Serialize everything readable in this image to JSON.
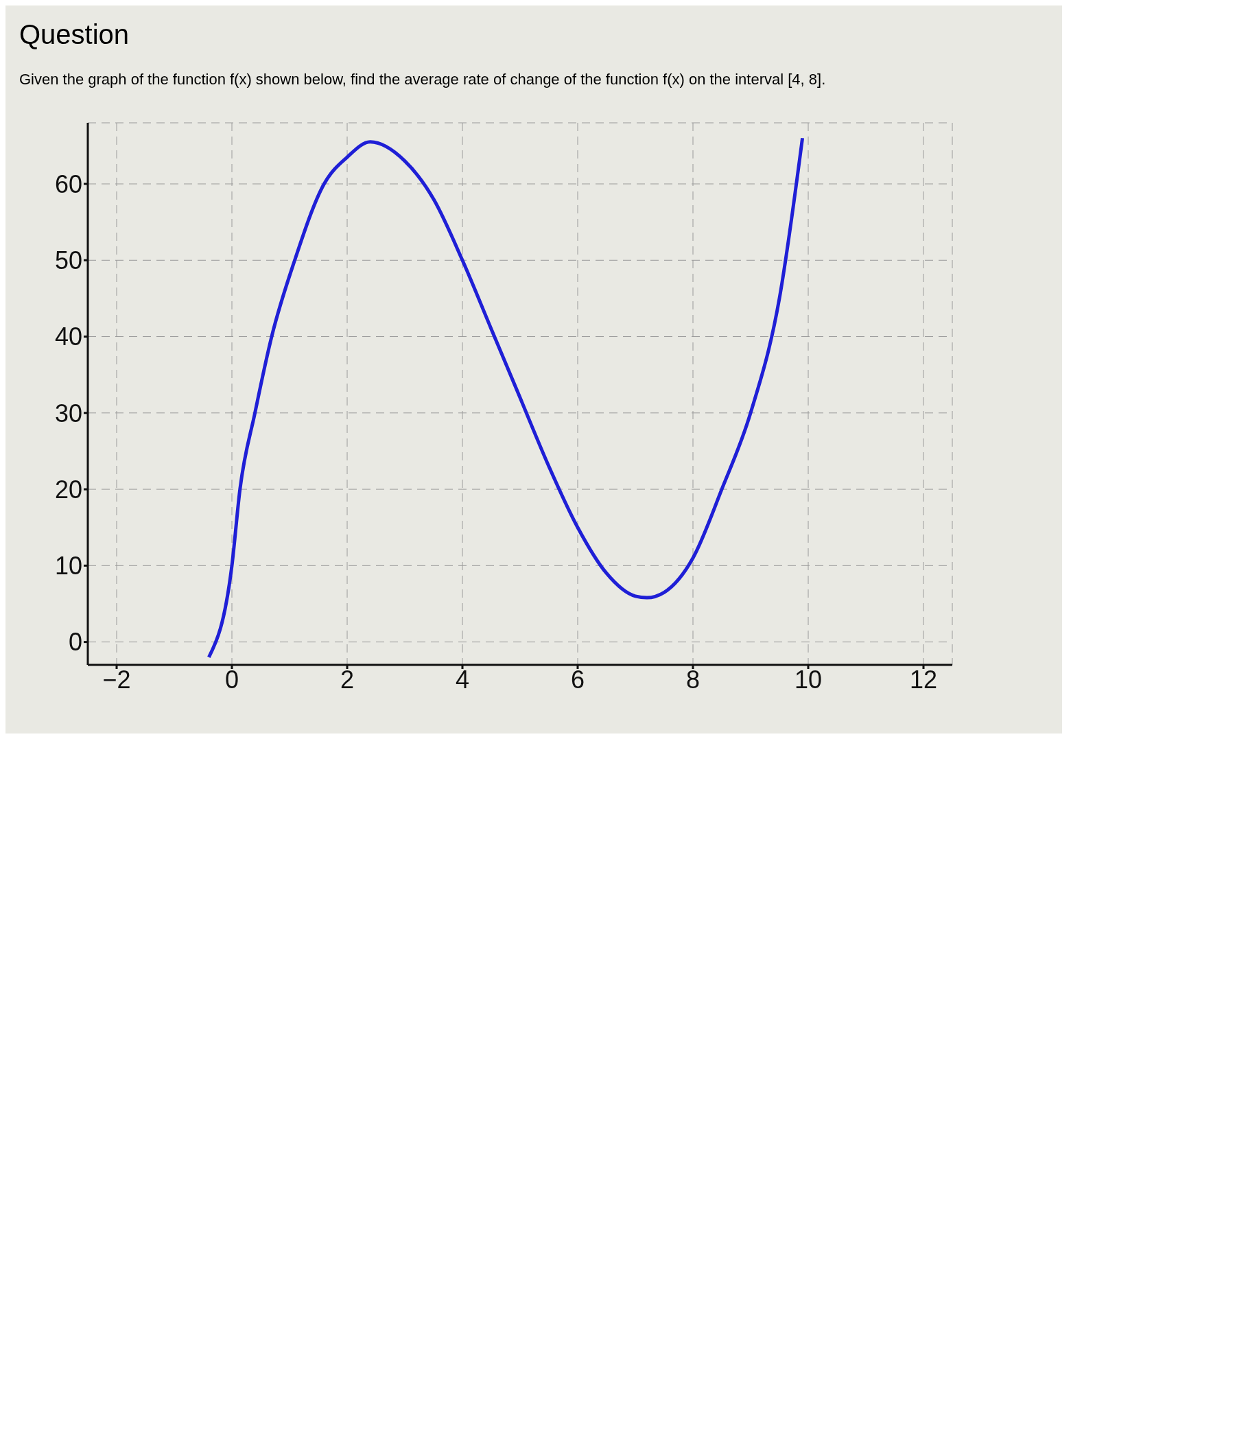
{
  "chart_data": {
    "type": "line",
    "title": "Question",
    "subtitle": "Given the graph of the function f(x) shown below, find the average rate of change of the function f(x) on the interval [4, 8].",
    "x": [
      -0.4,
      0,
      0.14,
      0.4,
      0.69,
      1.09,
      1.6,
      2,
      2.4,
      3,
      3.5,
      4,
      4.5,
      5,
      5.5,
      6,
      6.5,
      7,
      7.2,
      7.5,
      8,
      8.5,
      9,
      9.5,
      9.9
    ],
    "series": [
      {
        "color": "#1f1fd6",
        "values": [
          -2,
          10,
          20,
          30,
          40,
          50,
          60,
          63.5,
          65.5,
          63,
          58,
          50,
          41,
          32,
          23,
          15,
          9,
          6,
          5.8,
          6.5,
          11,
          20,
          30,
          45,
          66
        ]
      }
    ],
    "xlim": [
      -2.5,
      12.5
    ],
    "ylim": [
      -3,
      68
    ],
    "xticks": [
      -2,
      0,
      2,
      4,
      6,
      8,
      10,
      12
    ],
    "yticks": [
      0,
      10,
      20,
      30,
      40,
      50,
      60
    ],
    "grid": true,
    "marker": "none",
    "line_style": "solid"
  }
}
